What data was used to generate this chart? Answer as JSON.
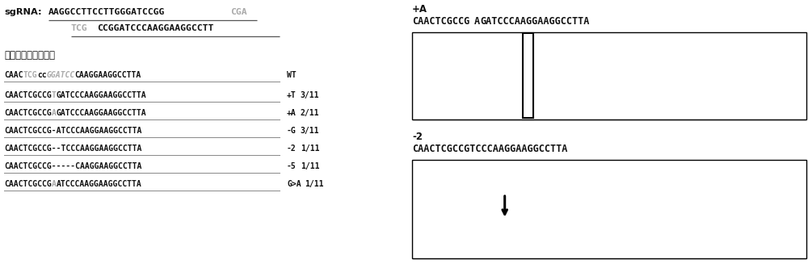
{
  "background_color": "#ffffff",
  "fig_width": 10.0,
  "fig_height": 3.27,
  "dpi": 100,
  "text_color_black": "#111111",
  "text_color_gray": "#aaaaaa",
  "sgrna_label": "sgRNA:",
  "sgrna_line1_black": "AAGGCCTTCCTTGGGATCCGG",
  "sgrna_line1_gray": "CGA",
  "sgrna_line2_gray": "TCG",
  "sgrna_line2_black": "CCGGATCCCAAGGAAGGCCTT",
  "mutation_header": "突变类型及其比例：",
  "chrom1_label": "+A",
  "chrom1_seq_black1": "CAACTCGCCG",
  "chrom1_seq_gray": "A",
  "chrom1_seq_black2": "GATCCCAAGGAAGGCCTTA",
  "chrom2_label": "-2",
  "chrom2_seq": "CAACTCGCCGTCCCAAGGAAGGCCTTA"
}
